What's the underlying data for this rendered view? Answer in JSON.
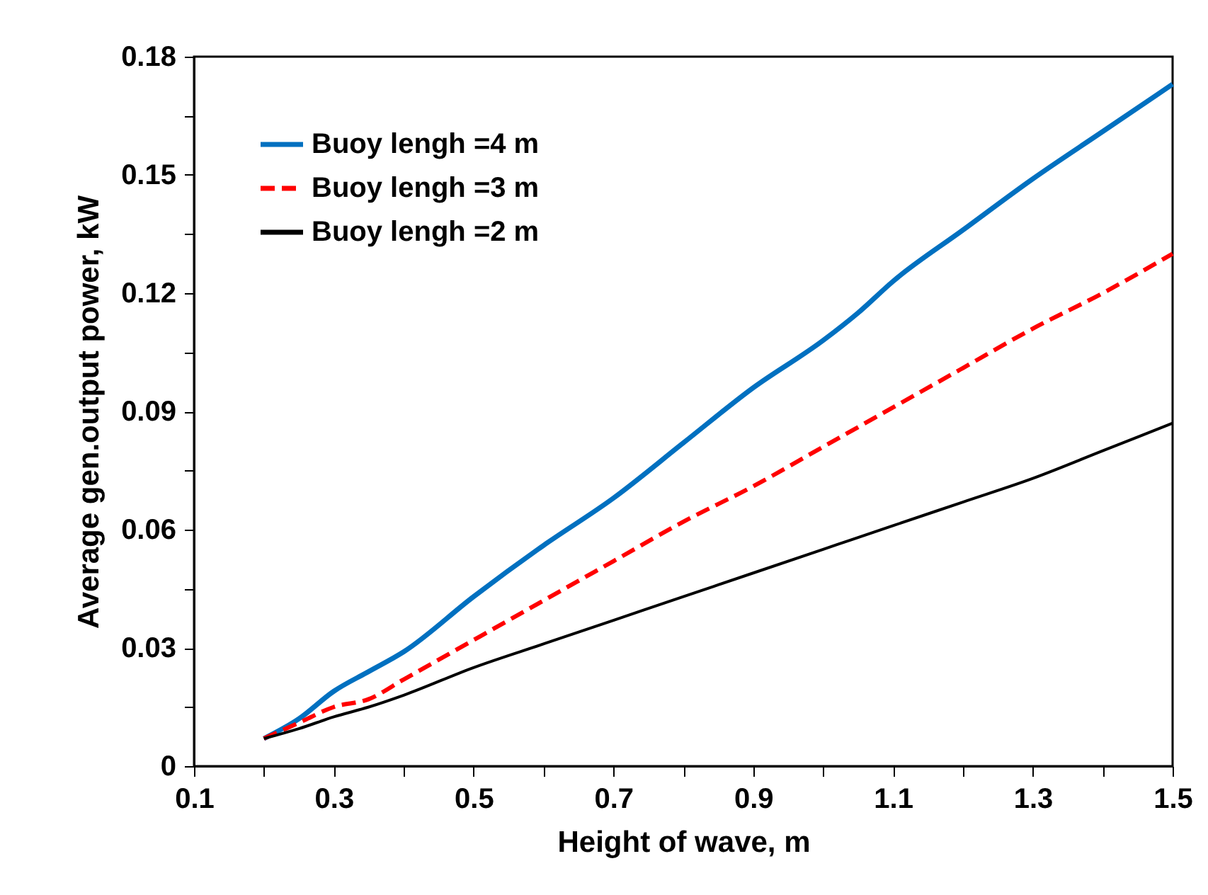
{
  "chart_data": {
    "type": "line",
    "xlabel": "Height of wave, m",
    "ylabel": "Average gen.output power, kW",
    "x": [
      0.2,
      0.25,
      0.3,
      0.35,
      0.4,
      0.5,
      0.6,
      0.7,
      0.8,
      0.9,
      1.0,
      1.05,
      1.1,
      1.2,
      1.3,
      1.4,
      1.5
    ],
    "series": [
      {
        "name": "Buoy lengh =4 m",
        "color": "#0070c0",
        "line_style": "solid",
        "values": [
          0.007,
          0.012,
          0.019,
          0.024,
          0.029,
          0.043,
          0.056,
          0.068,
          0.082,
          0.096,
          0.108,
          0.115,
          0.123,
          0.136,
          0.149,
          0.161,
          0.173
        ]
      },
      {
        "name": "Buoy lengh =3 m",
        "color": "#ff0000",
        "line_style": "dashed",
        "values": [
          0.007,
          0.011,
          0.015,
          0.017,
          0.022,
          0.032,
          0.042,
          0.052,
          0.062,
          0.071,
          0.081,
          0.086,
          0.091,
          0.101,
          0.111,
          0.12,
          0.13
        ]
      },
      {
        "name": "Buoy lengh =2 m",
        "color": "#000000",
        "line_style": "solid",
        "values": [
          0.007,
          0.0095,
          0.0125,
          0.015,
          0.018,
          0.025,
          0.031,
          0.037,
          0.043,
          0.049,
          0.055,
          0.058,
          0.061,
          0.067,
          0.073,
          0.08,
          0.087
        ]
      }
    ],
    "xlim": [
      0.1,
      1.5
    ],
    "ylim": [
      0,
      0.18
    ],
    "xticks": [
      0.1,
      {
        "value": 0.2,
        "label": null
      },
      0.3,
      {
        "value": 0.4,
        "label": null
      },
      0.5,
      {
        "value": 0.6,
        "label": null
      },
      0.7,
      {
        "value": 0.8,
        "label": null
      },
      0.9,
      {
        "value": 1.0,
        "label": null
      },
      1.1,
      {
        "value": 1.2,
        "label": null
      },
      1.3,
      {
        "value": 1.4,
        "label": null
      },
      1.5
    ],
    "yticks": [
      0,
      {
        "value": 0.015,
        "label": null
      },
      0.03,
      {
        "value": 0.045,
        "label": null
      },
      0.06,
      {
        "value": 0.075,
        "label": null
      },
      0.09,
      {
        "value": 0.105,
        "label": null
      },
      0.12,
      {
        "value": 0.135,
        "label": null
      },
      0.15,
      {
        "value": 0.165,
        "label": null
      },
      0.18
    ],
    "grid": false,
    "legend": "top left",
    "marker": "none"
  }
}
